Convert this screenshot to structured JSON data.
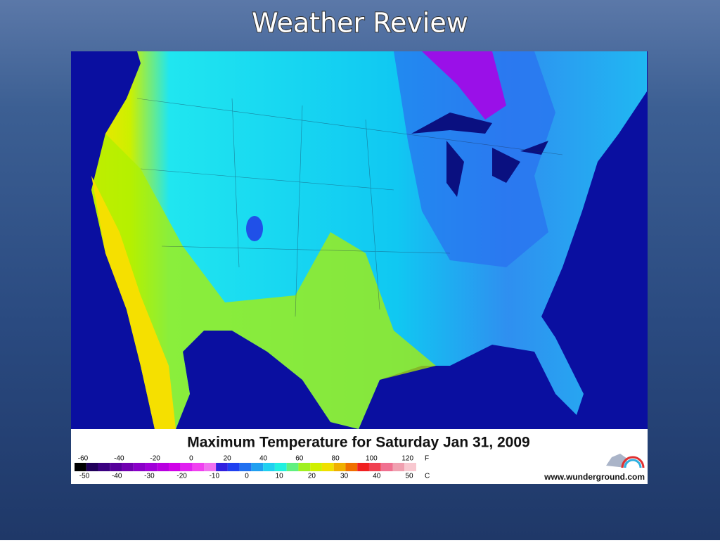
{
  "title": "Weather Review",
  "map": {
    "caption": "Maximum Temperature for Saturday Jan 31, 2009",
    "credit": "www.wunderground.com"
  },
  "legend": {
    "fahrenheit": [
      -60,
      -40,
      -20,
      0,
      20,
      40,
      60,
      80,
      100,
      120
    ],
    "fahrenheit_unit": "F",
    "celsius": [
      -50,
      -40,
      -30,
      -20,
      -10,
      0,
      10,
      20,
      30,
      40,
      50
    ],
    "celsius_unit": "C"
  }
}
